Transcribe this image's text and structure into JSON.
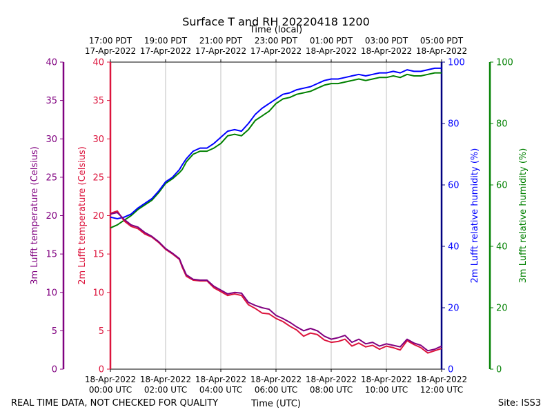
{
  "chart_data": {
    "type": "line",
    "title": "Surface T and RH 20220418 1200",
    "footer_left": "REAL TIME DATA, NOT CHECKED FOR QUALITY",
    "footer_right": "Site: ISS3",
    "xlabel_bottom": "Time (UTC)",
    "xlabel_top": "Time (local)",
    "x_unit": "hours since 18-Apr-2022 00:00 UTC",
    "xlim": [
      0,
      12
    ],
    "bottom_ticks": [
      {
        "x": 0,
        "line1": "18-Apr-2022",
        "line2": "00:00 UTC"
      },
      {
        "x": 2,
        "line1": "18-Apr-2022",
        "line2": "02:00 UTC"
      },
      {
        "x": 4,
        "line1": "18-Apr-2022",
        "line2": "04:00 UTC"
      },
      {
        "x": 6,
        "line1": "18-Apr-2022",
        "line2": "06:00 UTC"
      },
      {
        "x": 8,
        "line1": "18-Apr-2022",
        "line2": "08:00 UTC"
      },
      {
        "x": 10,
        "line1": "18-Apr-2022",
        "line2": "10:00 UTC"
      },
      {
        "x": 12,
        "line1": "18-Apr-2022",
        "line2": "12:00 UTC"
      }
    ],
    "top_ticks": [
      {
        "x": 0,
        "line1": "17:00 PDT",
        "line2": "17-Apr-2022"
      },
      {
        "x": 2,
        "line1": "19:00 PDT",
        "line2": "17-Apr-2022"
      },
      {
        "x": 4,
        "line1": "21:00 PDT",
        "line2": "17-Apr-2022"
      },
      {
        "x": 6,
        "line1": "23:00 PDT",
        "line2": "17-Apr-2022"
      },
      {
        "x": 8,
        "line1": "01:00 PDT",
        "line2": "18-Apr-2022"
      },
      {
        "x": 10,
        "line1": "03:00 PDT",
        "line2": "18-Apr-2022"
      },
      {
        "x": 12,
        "line1": "05:00 PDT",
        "line2": "18-Apr-2022"
      }
    ],
    "grid_x": true,
    "temp_axes": [
      {
        "label": "3m Lufft temperature (Celsius)",
        "color": "#800080",
        "ylim": [
          0,
          40
        ],
        "ticks": [
          0,
          5,
          10,
          15,
          20,
          25,
          30,
          35,
          40
        ]
      },
      {
        "label": "2m Lufft temperature (Celsius)",
        "color": "#dc143c",
        "ylim": [
          0,
          40
        ],
        "ticks": [
          0,
          5,
          10,
          15,
          20,
          25,
          30,
          35,
          40
        ]
      }
    ],
    "rh_axes": [
      {
        "label": "2m Lufft relative humidity (%)",
        "color": "#0000ff",
        "axis_color": "#000080",
        "ylim": [
          0,
          100
        ],
        "ticks": [
          0,
          20,
          40,
          60,
          80,
          100
        ]
      },
      {
        "label": "3m Lufft relative humidity (%)",
        "color": "#008000",
        "ylim": [
          0,
          100
        ],
        "ticks": [
          0,
          20,
          40,
          60,
          80,
          100
        ]
      }
    ],
    "series": [
      {
        "name": "3m Lufft temperature (Celsius)",
        "axis": "temp",
        "color": "#800080",
        "x": [
          0,
          0.25,
          0.5,
          0.75,
          1,
          1.25,
          1.5,
          1.75,
          2,
          2.25,
          2.5,
          2.6,
          2.75,
          3,
          3.25,
          3.5,
          3.75,
          4,
          4.25,
          4.5,
          4.75,
          5,
          5.25,
          5.5,
          5.75,
          6,
          6.25,
          6.5,
          6.75,
          7,
          7.25,
          7.5,
          7.75,
          8,
          8.25,
          8.5,
          8.75,
          9,
          9.25,
          9.5,
          9.75,
          10,
          10.25,
          10.5,
          10.75,
          11,
          11.25,
          11.5,
          11.75,
          12
        ],
        "y": [
          20.2,
          20.4,
          19.5,
          18.8,
          18.5,
          17.8,
          17.3,
          16.6,
          15.7,
          15.1,
          14.4,
          13.5,
          12.3,
          11.7,
          11.6,
          11.6,
          10.8,
          10.3,
          9.8,
          10.0,
          9.9,
          8.7,
          8.3,
          8.0,
          7.8,
          7.0,
          6.6,
          6.1,
          5.5,
          5.0,
          5.3,
          5.0,
          4.3,
          3.9,
          4.1,
          4.4,
          3.5,
          3.9,
          3.3,
          3.5,
          3.0,
          3.3,
          3.1,
          2.9,
          3.9,
          3.4,
          3.1,
          2.4,
          2.6,
          3.0
        ]
      },
      {
        "name": "2m Lufft temperature (Celsius)",
        "axis": "temp",
        "color": "#dc143c",
        "x": [
          0,
          0.25,
          0.5,
          0.75,
          1,
          1.25,
          1.5,
          1.75,
          2,
          2.25,
          2.5,
          2.6,
          2.75,
          3,
          3.25,
          3.5,
          3.75,
          4,
          4.25,
          4.5,
          4.75,
          5,
          5.25,
          5.5,
          5.75,
          6,
          6.25,
          6.5,
          6.75,
          7,
          7.25,
          7.5,
          7.75,
          8,
          8.25,
          8.5,
          8.75,
          9,
          9.25,
          9.5,
          9.75,
          10,
          10.25,
          10.5,
          10.75,
          11,
          11.25,
          11.5,
          11.75,
          12
        ],
        "y": [
          20.3,
          20.6,
          19.3,
          18.6,
          18.3,
          17.6,
          17.2,
          16.5,
          15.6,
          15.0,
          14.3,
          13.3,
          12.1,
          11.6,
          11.5,
          11.5,
          10.6,
          10.1,
          9.6,
          9.8,
          9.6,
          8.4,
          7.9,
          7.3,
          7.2,
          6.6,
          6.2,
          5.6,
          5.1,
          4.3,
          4.7,
          4.5,
          3.8,
          3.5,
          3.6,
          3.9,
          3.0,
          3.4,
          2.9,
          3.1,
          2.6,
          3.0,
          2.8,
          2.5,
          3.7,
          3.2,
          2.8,
          2.1,
          2.4,
          2.7
        ]
      },
      {
        "name": "2m Lufft relative humidity (%)",
        "axis": "rh",
        "color": "#0000ff",
        "x": [
          0,
          0.25,
          0.5,
          0.75,
          1,
          1.25,
          1.5,
          1.75,
          2,
          2.25,
          2.5,
          2.6,
          2.75,
          3,
          3.25,
          3.5,
          3.75,
          4,
          4.25,
          4.5,
          4.75,
          5,
          5.25,
          5.5,
          5.75,
          6,
          6.25,
          6.5,
          6.75,
          7,
          7.25,
          7.5,
          7.75,
          8,
          8.25,
          8.5,
          8.75,
          9,
          9.25,
          9.5,
          9.75,
          10,
          10.25,
          10.5,
          10.75,
          11,
          11.25,
          11.5,
          11.75,
          12
        ],
        "y": [
          49.5,
          49.0,
          49.5,
          50.5,
          52.5,
          54.0,
          55.5,
          58.0,
          61.0,
          62.5,
          65.0,
          66.5,
          68.5,
          71.0,
          72.0,
          72.0,
          73.5,
          75.5,
          77.5,
          78.0,
          77.5,
          80.0,
          83.0,
          85.0,
          86.5,
          88.0,
          89.5,
          90.0,
          91.0,
          91.5,
          92.0,
          93.0,
          94.0,
          94.5,
          94.5,
          95.0,
          95.5,
          96.0,
          95.5,
          96.0,
          96.5,
          96.5,
          97.0,
          96.5,
          97.5,
          97.0,
          97.0,
          97.5,
          98.0,
          98.0
        ]
      },
      {
        "name": "3m Lufft relative humidity (%)",
        "axis": "rh",
        "color": "#008000",
        "x": [
          0,
          0.25,
          0.5,
          0.75,
          1,
          1.25,
          1.5,
          1.75,
          2,
          2.25,
          2.5,
          2.6,
          2.75,
          3,
          3.25,
          3.5,
          3.75,
          4,
          4.25,
          4.5,
          4.75,
          5,
          5.25,
          5.5,
          5.75,
          6,
          6.25,
          6.5,
          6.75,
          7,
          7.25,
          7.5,
          7.75,
          8,
          8.25,
          8.5,
          8.75,
          9,
          9.25,
          9.5,
          9.75,
          10,
          10.25,
          10.5,
          10.75,
          11,
          11.25,
          11.5,
          11.75,
          12
        ],
        "y": [
          46.0,
          47.0,
          48.5,
          50.0,
          52.0,
          53.5,
          55.0,
          57.5,
          60.5,
          62.0,
          64.0,
          65.0,
          67.5,
          70.0,
          71.0,
          71.0,
          72.0,
          73.5,
          76.0,
          76.5,
          76.0,
          78.0,
          81.0,
          82.5,
          84.0,
          86.5,
          88.0,
          88.5,
          89.5,
          90.0,
          90.5,
          91.5,
          92.5,
          93.0,
          93.0,
          93.5,
          94.0,
          94.5,
          94.0,
          94.5,
          95.0,
          95.0,
          95.5,
          95.0,
          96.0,
          95.5,
          95.5,
          96.0,
          96.5,
          96.5
        ]
      }
    ]
  }
}
